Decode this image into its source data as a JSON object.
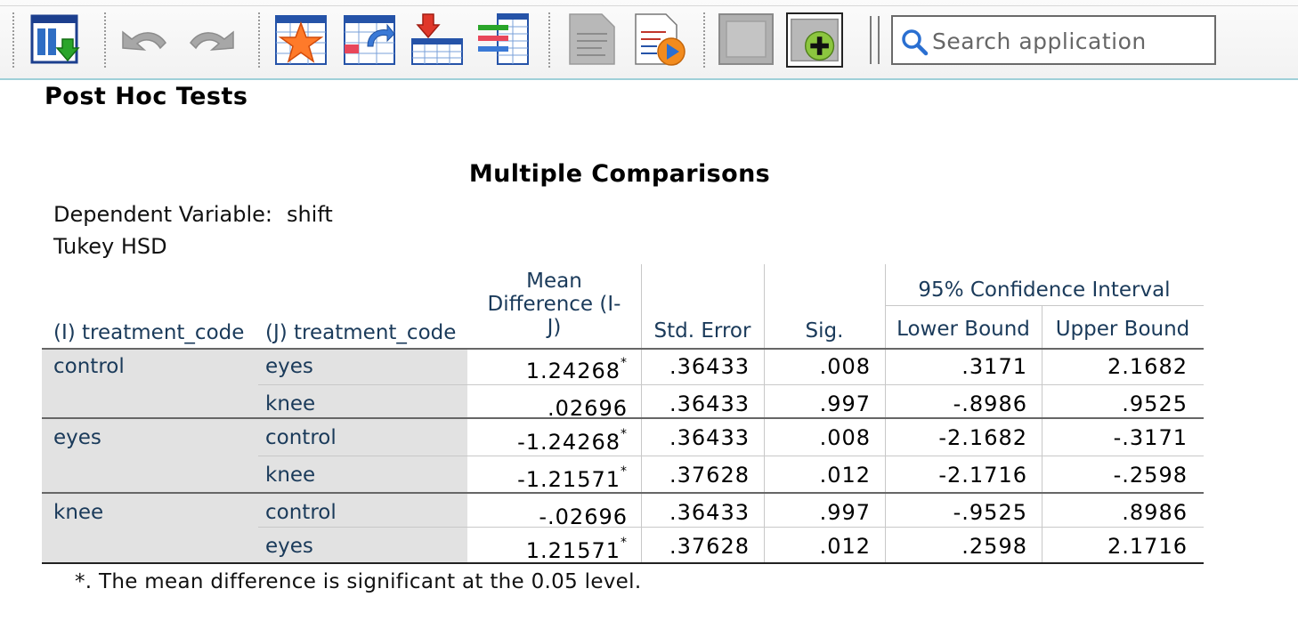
{
  "toolbar": {
    "buttons": [
      {
        "icon": "window-export-icon"
      },
      {
        "icon": "undo-icon"
      },
      {
        "icon": "redo-icon"
      },
      {
        "icon": "star-table-icon"
      },
      {
        "icon": "pivot-table-icon"
      },
      {
        "icon": "insert-data-icon"
      },
      {
        "icon": "split-file-icon"
      },
      {
        "icon": "document-icon"
      },
      {
        "icon": "run-script-icon"
      },
      {
        "icon": "grid-frame-icon"
      },
      {
        "icon": "add-item-icon"
      }
    ],
    "search": {
      "placeholder": "Search application",
      "value": ""
    }
  },
  "output": {
    "heading": "Post Hoc Tests",
    "table": {
      "title": "Multiple Comparisons",
      "dependent_label": "Dependent Variable:",
      "dependent_value": "shift",
      "method": "Tukey HSD",
      "headers": {
        "i": "(I) treatment_code",
        "j": "(J) treatment_code",
        "mean_diff_1": "Mean",
        "mean_diff_2": "Difference (I-",
        "mean_diff_3": "J)",
        "std_error": "Std. Error",
        "sig": "Sig.",
        "ci": "95% Confidence Interval",
        "lower": "Lower Bound",
        "upper": "Upper Bound"
      },
      "groups": [
        {
          "label": "control"
        },
        {
          "label": "eyes"
        },
        {
          "label": "knee"
        }
      ],
      "rows": [
        {
          "j": "eyes",
          "mean_diff": "1.24268",
          "star": "*",
          "std_error": ".36433",
          "sig": ".008",
          "lower": ".3171",
          "upper": "2.1682"
        },
        {
          "j": "knee",
          "mean_diff": ".02696",
          "star": "",
          "std_error": ".36433",
          "sig": ".997",
          "lower": "-.8986",
          "upper": ".9525"
        },
        {
          "j": "control",
          "mean_diff": "-1.24268",
          "star": "*",
          "std_error": ".36433",
          "sig": ".008",
          "lower": "-2.1682",
          "upper": "-.3171"
        },
        {
          "j": "knee",
          "mean_diff": "-1.21571",
          "star": "*",
          "std_error": ".37628",
          "sig": ".012",
          "lower": "-2.1716",
          "upper": "-.2598"
        },
        {
          "j": "control",
          "mean_diff": "-.02696",
          "star": "",
          "std_error": ".36433",
          "sig": ".997",
          "lower": "-.9525",
          "upper": ".8986"
        },
        {
          "j": "eyes",
          "mean_diff": "1.21571",
          "star": "*",
          "std_error": ".37628",
          "sig": ".012",
          "lower": ".2598",
          "upper": "2.1716"
        }
      ],
      "footnote": "*. The mean difference is significant at the 0.05 level."
    }
  }
}
